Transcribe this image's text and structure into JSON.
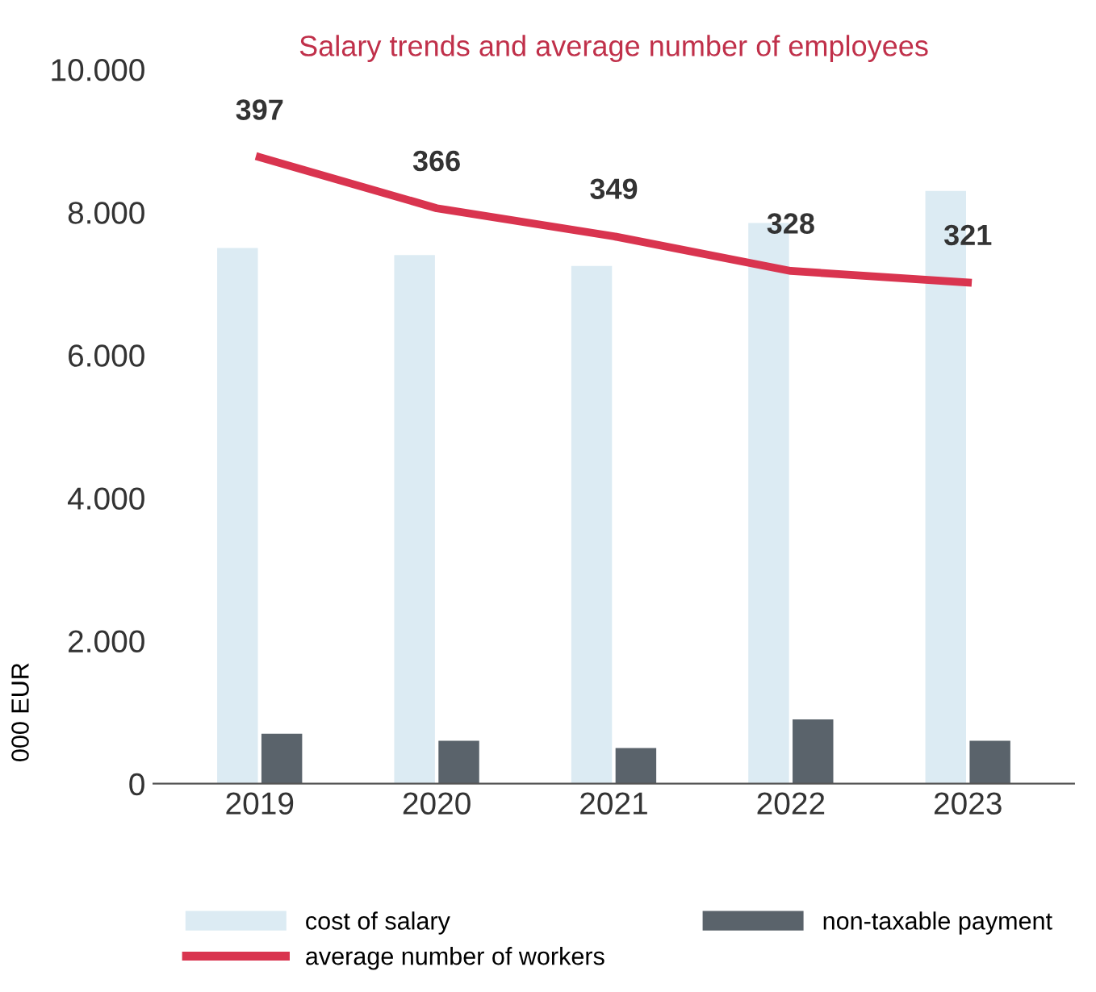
{
  "chart_data": {
    "type": "bar",
    "title": "Salary trends and average number of employees",
    "ylabel": "000 EUR",
    "categories": [
      "2019",
      "2020",
      "2021",
      "2022",
      "2023"
    ],
    "series": [
      {
        "name": "cost of salary",
        "color": "#dcebf3",
        "values": [
          7500,
          7400,
          7250,
          7850,
          8300
        ]
      },
      {
        "name": "non-taxable payment",
        "color": "#5a636b",
        "values": [
          700,
          600,
          500,
          900,
          600
        ]
      },
      {
        "name": "average number of workers",
        "type": "line",
        "axis": "y2",
        "color": "#d9344f",
        "values": [
          397,
          366,
          349,
          328,
          321
        ],
        "value_labels": [
          "397",
          "366",
          "349",
          "328",
          "321"
        ]
      }
    ],
    "ylim": [
      0,
      10000
    ],
    "yticks": [
      {
        "value": 0,
        "label": "0"
      },
      {
        "value": 2000,
        "label": "2.000"
      },
      {
        "value": 4000,
        "label": "4.000"
      },
      {
        "value": 6000,
        "label": "6.000"
      },
      {
        "value": 8000,
        "label": "8.000"
      },
      {
        "value": 10000,
        "label": "10.000"
      }
    ],
    "grid": false,
    "legend": "bottom"
  }
}
